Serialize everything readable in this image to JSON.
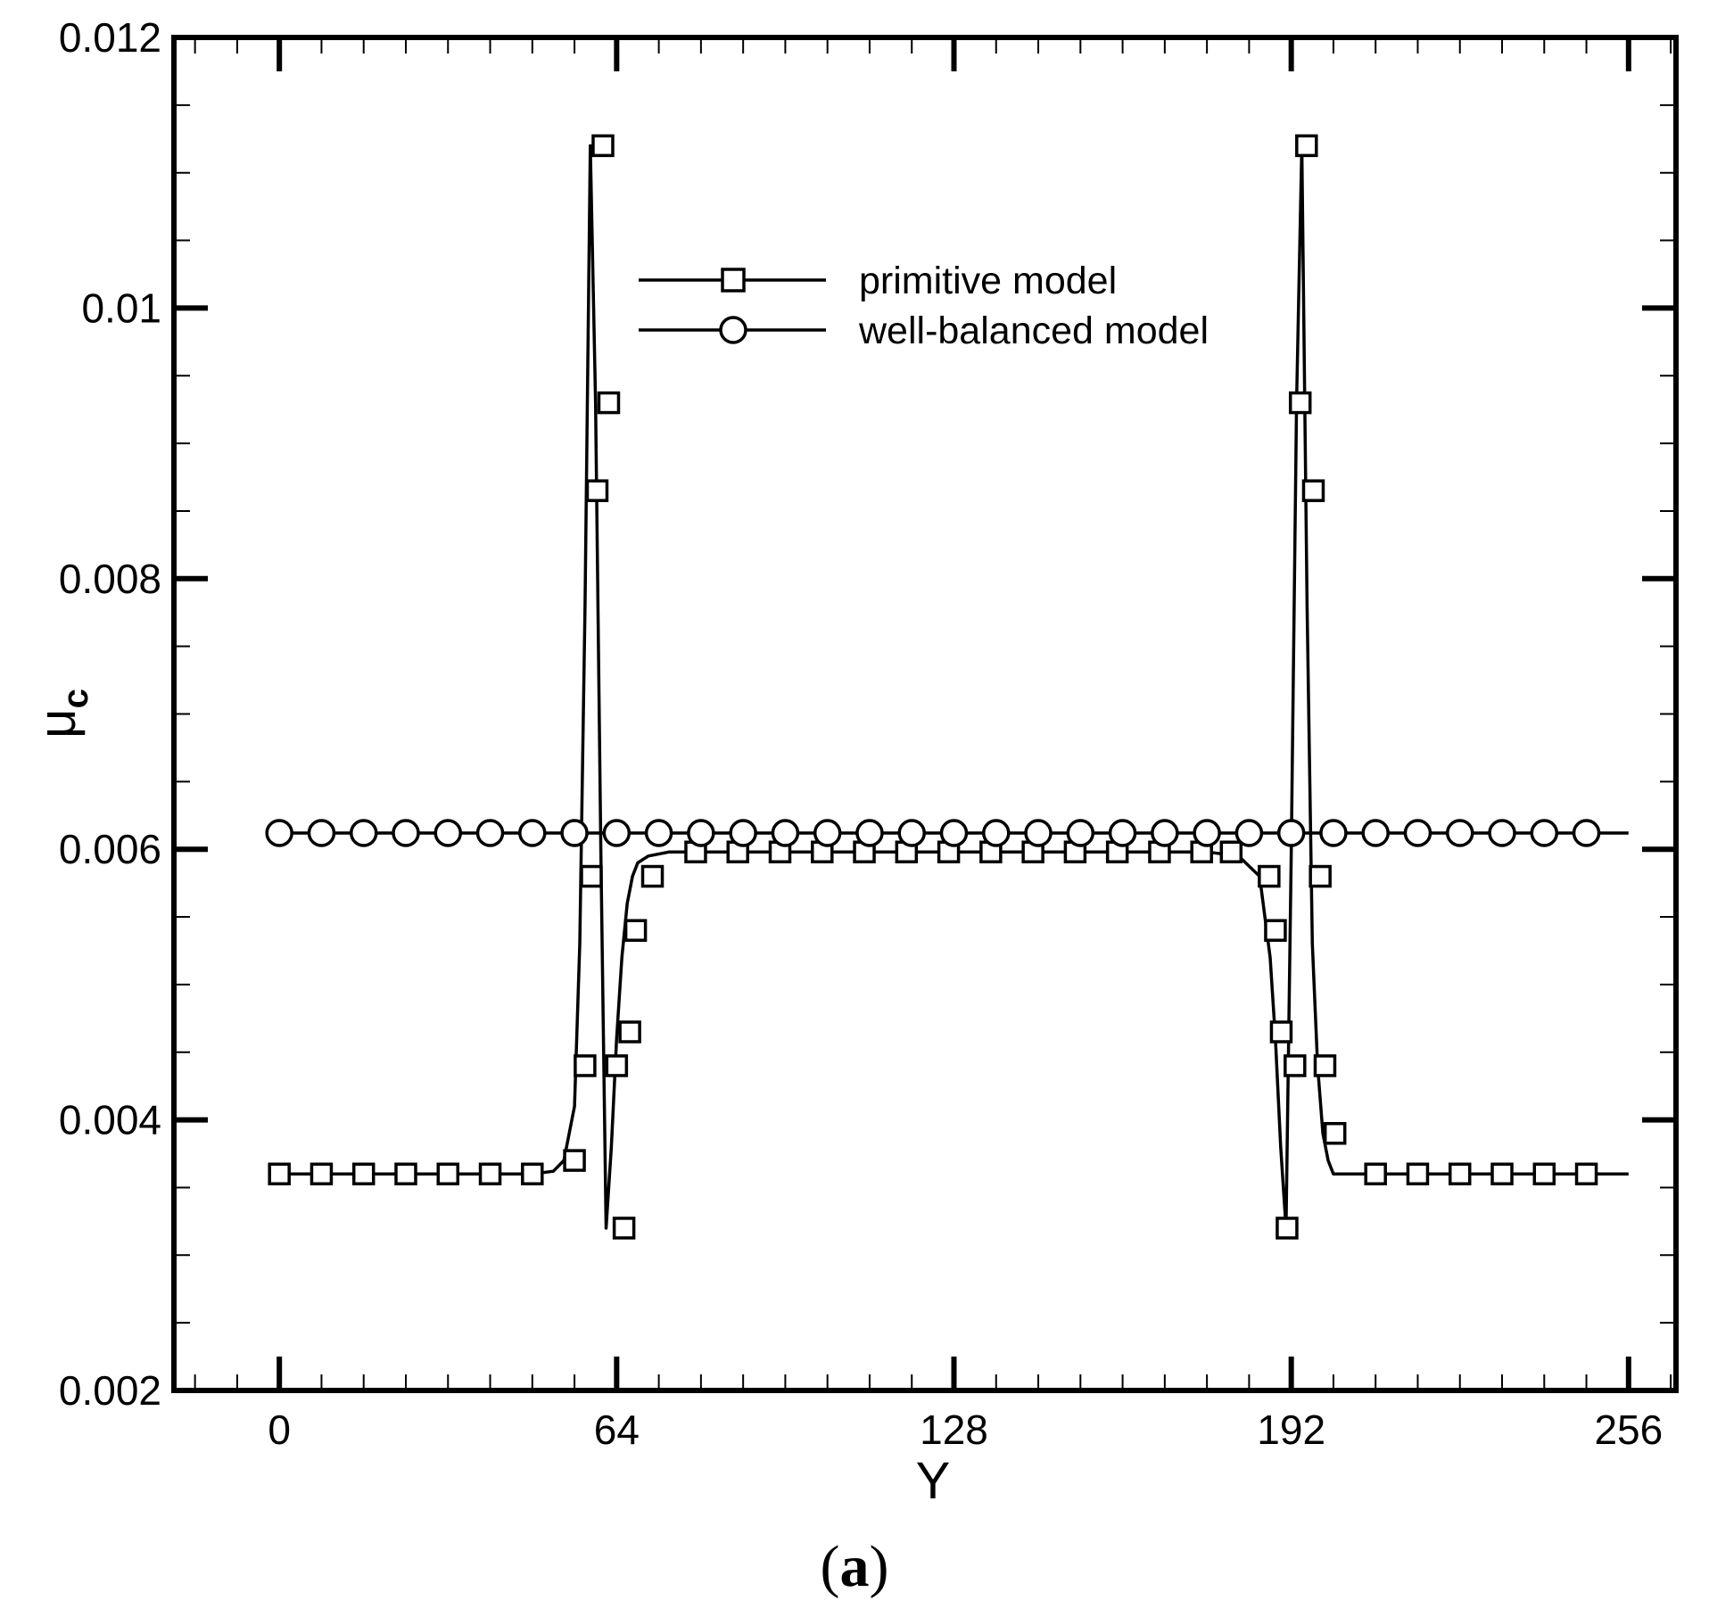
{
  "chart_data": {
    "type": "line",
    "title": "",
    "panel_label": {
      "open": "(",
      "letter": "a",
      "close": ")"
    },
    "xlabel": "Y",
    "ylabel": {
      "main": "μ",
      "sub": "c"
    },
    "xlim": [
      -20,
      265
    ],
    "ylim": [
      0.002,
      0.012
    ],
    "x_ticks": [
      0,
      64,
      128,
      192,
      256
    ],
    "x_tick_labels": [
      "0",
      "64",
      "128",
      "192",
      "256"
    ],
    "x_minor_step": 8,
    "y_ticks": [
      0.002,
      0.004,
      0.006,
      0.008,
      0.01,
      0.012
    ],
    "y_tick_labels": [
      "0.002",
      "0.004",
      "0.006",
      "0.008",
      "0.01",
      "0.012"
    ],
    "y_minor_step": 0.0005,
    "grid": false,
    "legend_position": "top-center",
    "series": [
      {
        "name": "primitive model",
        "marker": "square",
        "line_x": [
          0,
          48,
          52,
          54,
          56,
          57,
          58,
          59,
          60,
          61,
          62,
          63,
          64,
          65,
          66,
          67,
          68,
          70,
          74,
          80,
          120,
          176,
          182,
          186,
          188,
          189,
          190,
          191,
          192,
          193,
          194,
          195,
          196,
          197,
          198,
          199,
          200,
          202,
          204,
          208,
          256
        ],
        "line_y": [
          0.0036,
          0.0036,
          0.00362,
          0.0037,
          0.0041,
          0.0053,
          0.0078,
          0.0112,
          0.0093,
          0.006,
          0.0032,
          0.0038,
          0.0046,
          0.0052,
          0.0056,
          0.0058,
          0.0059,
          0.00595,
          0.00598,
          0.00598,
          0.00598,
          0.00598,
          0.00595,
          0.0058,
          0.0052,
          0.0046,
          0.0038,
          0.0032,
          0.006,
          0.0093,
          0.0112,
          0.0078,
          0.0053,
          0.0044,
          0.0039,
          0.0037,
          0.0036,
          0.0036,
          0.0036,
          0.0036,
          0.0036
        ],
        "marker_x": [
          0,
          8,
          16,
          24,
          32,
          40,
          48,
          56,
          58,
          59.2,
          60.3,
          61.4,
          62.5,
          64,
          65.4,
          66.5,
          67.6,
          70.8,
          79,
          87,
          95,
          103,
          111,
          119,
          127,
          135,
          143,
          151,
          159,
          167,
          175,
          180.6,
          187.8,
          189,
          190.1,
          191.2,
          192.7,
          193.7,
          194.9,
          196.2,
          197.5,
          198.4,
          200.3,
          208,
          216,
          224,
          232,
          240,
          248
        ],
        "marker_y": [
          0.0036,
          0.0036,
          0.0036,
          0.0036,
          0.0036,
          0.0036,
          0.0036,
          0.0037,
          0.0044,
          0.0058,
          0.00865,
          0.0112,
          0.0093,
          0.0044,
          0.0032,
          0.00465,
          0.0054,
          0.0058,
          0.00598,
          0.00598,
          0.00598,
          0.00598,
          0.00598,
          0.00598,
          0.00598,
          0.00598,
          0.00598,
          0.00598,
          0.00598,
          0.00598,
          0.00598,
          0.00598,
          0.0058,
          0.0054,
          0.00465,
          0.0032,
          0.0044,
          0.0093,
          0.0112,
          0.00865,
          0.0058,
          0.0044,
          0.0039,
          0.0036,
          0.0036,
          0.0036,
          0.0036,
          0.0036,
          0.0036
        ]
      },
      {
        "name": "well-balanced model",
        "marker": "circle",
        "line_x": [
          0,
          256
        ],
        "line_y": [
          0.00612,
          0.00612
        ],
        "marker_x": [
          0,
          8,
          16,
          24,
          32,
          40,
          48,
          56,
          64,
          72,
          80,
          88,
          96,
          104,
          112,
          120,
          128,
          136,
          144,
          152,
          160,
          168,
          176,
          184,
          192,
          200,
          208,
          216,
          224,
          232,
          240,
          248
        ],
        "marker_y": [
          0.00612,
          0.00612,
          0.00612,
          0.00612,
          0.00612,
          0.00612,
          0.00612,
          0.00612,
          0.00612,
          0.00612,
          0.00612,
          0.00612,
          0.00612,
          0.00612,
          0.00612,
          0.00612,
          0.00612,
          0.00612,
          0.00612,
          0.00612,
          0.00612,
          0.00612,
          0.00612,
          0.00612,
          0.00612,
          0.00612,
          0.00612,
          0.00612,
          0.00612,
          0.00612,
          0.00612,
          0.00612
        ]
      }
    ]
  }
}
